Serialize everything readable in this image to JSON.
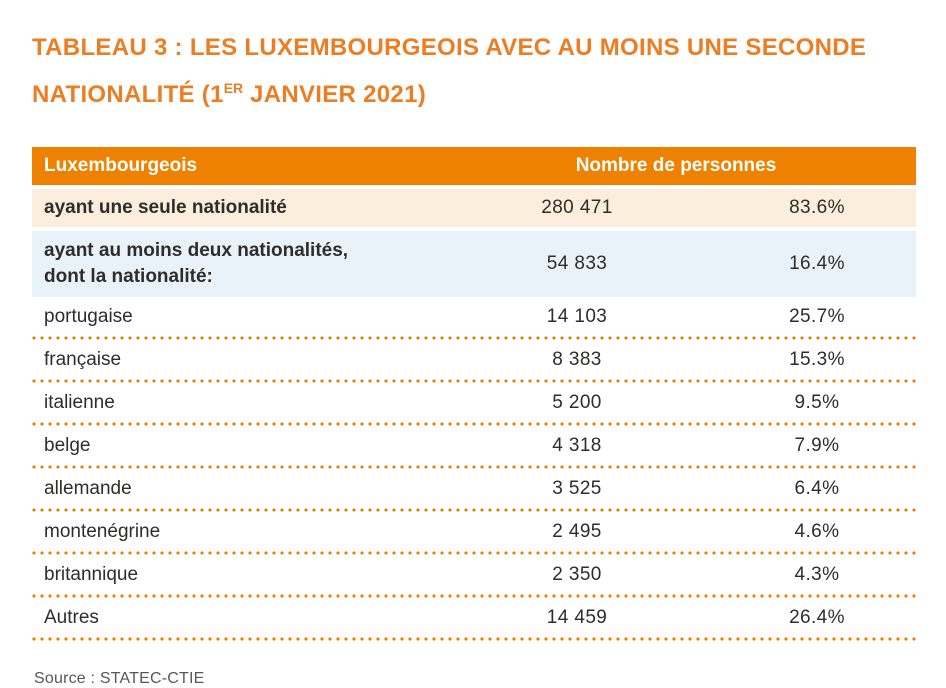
{
  "title": {
    "line1": "TABLEAU 3 : LES LUXEMBOURGEOIS AVEC AU MOINS UNE SECONDE",
    "line2_pre": "NATIONALITÉ (1",
    "line2_sup": "ER",
    "line2_post": " JANVIER 2021)"
  },
  "table": {
    "header": {
      "col_label": "Luxembourgeois",
      "col_values": "Nombre de personnes"
    },
    "summary_rows": [
      {
        "label": "ayant une seule nationalité",
        "count": "280 471",
        "percent": "83.6%"
      },
      {
        "label_line1": "ayant au moins deux nationalités,",
        "label_line2": "dont la nationalité:",
        "count": "54 833",
        "percent": "16.4%"
      }
    ],
    "rows": [
      {
        "label": "portugaise",
        "count": "14 103",
        "percent": "25.7%"
      },
      {
        "label": "française",
        "count": "8 383",
        "percent": "15.3%"
      },
      {
        "label": "italienne",
        "count": "5 200",
        "percent": "9.5%"
      },
      {
        "label": "belge",
        "count": "4 318",
        "percent": "7.9%"
      },
      {
        "label": "allemande",
        "count": "3 525",
        "percent": "6.4%"
      },
      {
        "label": "montenégrine",
        "count": "2 495",
        "percent": "4.6%"
      },
      {
        "label": "britannique",
        "count": "2 350",
        "percent": "4.3%"
      },
      {
        "label": "Autres",
        "count": "14 459",
        "percent": "26.4%"
      }
    ]
  },
  "source": "Source : STATEC-CTIE",
  "colors": {
    "accent_orange": "#EE8100",
    "title_orange": "#ED7D23",
    "dots_orange": "#ED7D00",
    "row_cream": "#FBEEDD",
    "row_blue": "#EAF2F9",
    "text_dark": "#2F2D2B",
    "source_gray": "#575756"
  },
  "chart_data": {
    "type": "table",
    "title": "TABLEAU 3 : LES LUXEMBOURGEOIS AVEC AU MOINS UNE SECONDE NATIONALITÉ (1ER JANVIER 2021)",
    "columns": [
      "Luxembourgeois",
      "Nombre de personnes",
      "%"
    ],
    "rows": [
      [
        "ayant une seule nationalité",
        280471,
        83.6
      ],
      [
        "ayant au moins deux nationalités, dont la nationalité:",
        54833,
        16.4
      ],
      [
        "portugaise",
        14103,
        25.7
      ],
      [
        "française",
        8383,
        15.3
      ],
      [
        "italienne",
        5200,
        9.5
      ],
      [
        "belge",
        4318,
        7.9
      ],
      [
        "allemande",
        3525,
        6.4
      ],
      [
        "montenégrine",
        2495,
        4.6
      ],
      [
        "britannique",
        2350,
        4.3
      ],
      [
        "Autres",
        14459,
        26.4
      ]
    ],
    "source": "Source : STATEC-CTIE"
  }
}
